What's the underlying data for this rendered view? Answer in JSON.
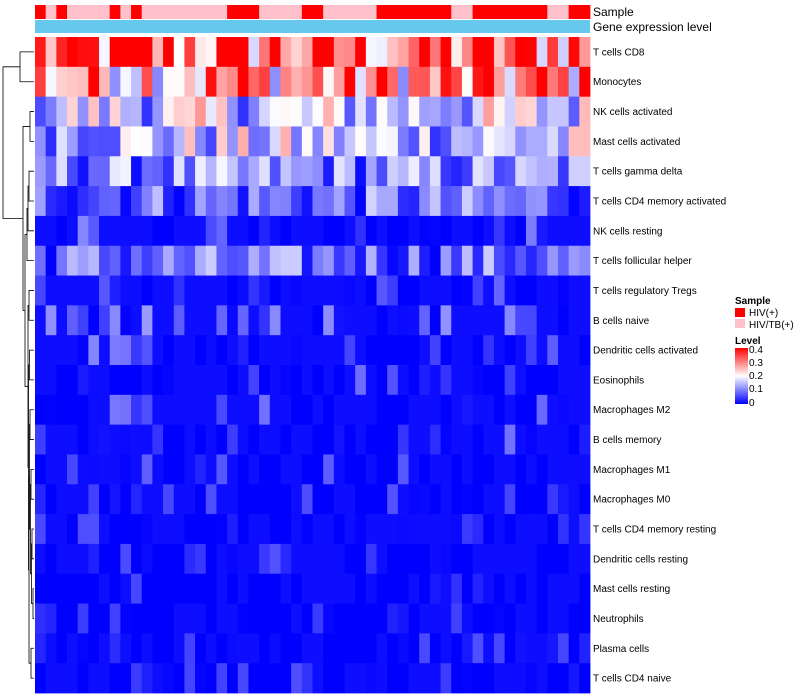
{
  "chart_data": {
    "type": "heatmap",
    "title": "",
    "n_columns": 52,
    "rows": [
      "T cells CD8",
      "Monocytes",
      "NK cells activated",
      "Mast cells activated",
      "T cells gamma delta",
      "T cells CD4 memory activated",
      "NK cells resting",
      "T cells follicular helper",
      "T cells regulatory  Tregs",
      "B cells naive",
      "Dendritic cells activated",
      "Eosinophils",
      "Macrophages M2",
      "B cells memory",
      "Macrophages M1",
      "Macrophages M0",
      "T cells CD4 memory resting",
      "Dendritic cells resting",
      "Mast cells resting",
      "Neutrophils",
      "Plasma cells",
      "T cells CD4 naive"
    ],
    "row_mean_level": [
      0.32,
      0.28,
      0.16,
      0.15,
      0.1,
      0.08,
      0.04,
      0.08,
      0.03,
      0.05,
      0.04,
      0.03,
      0.03,
      0.03,
      0.02,
      0.015,
      0.01,
      0.01,
      0.005,
      0.003,
      0.01,
      0.01
    ],
    "sample_annotation": {
      "label": "Sample",
      "groups": [
        "HIV(+)",
        "HIV/TB(+)"
      ],
      "column_groups": [
        0,
        1,
        0,
        1,
        1,
        1,
        1,
        0,
        1,
        0,
        1,
        1,
        1,
        1,
        1,
        1,
        1,
        1,
        0,
        0,
        0,
        1,
        1,
        1,
        1,
        0,
        0,
        1,
        1,
        1,
        1,
        1,
        0,
        0,
        0,
        0,
        0,
        0,
        0,
        1,
        1,
        0,
        0,
        0,
        0,
        0,
        0,
        0,
        1,
        1,
        0,
        0
      ]
    },
    "expression_annotation": {
      "label": "Gene expression level",
      "color": "#67C8EE"
    },
    "legends": {
      "sample": {
        "title": "Sample",
        "items": [
          {
            "label": "HIV(+)",
            "color": "#FF0000"
          },
          {
            "label": "HIV/TB(+)",
            "color": "#FFC0CB"
          }
        ]
      },
      "level": {
        "title": "Level",
        "ticks": [
          "0.4",
          "0.3",
          "0.2",
          "0.1",
          "0"
        ],
        "range": [
          0,
          0.4
        ],
        "colors": [
          "#0000FF",
          "#FFFFFF",
          "#FF0000"
        ]
      }
    }
  }
}
